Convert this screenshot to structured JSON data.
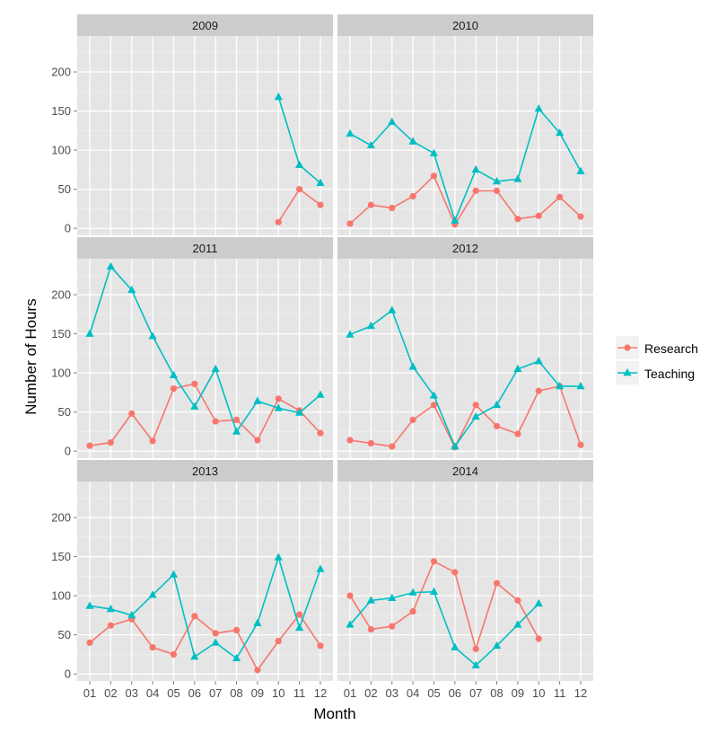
{
  "chart_data": {
    "type": "line",
    "facet_by": "year",
    "xlabel": "Month",
    "ylabel": "Number of Hours",
    "x_categories": [
      "01",
      "02",
      "03",
      "04",
      "05",
      "06",
      "07",
      "08",
      "09",
      "10",
      "11",
      "12"
    ],
    "yticks": [
      0,
      50,
      100,
      150,
      200
    ],
    "ylim": [
      -9,
      246
    ],
    "grid": true,
    "legend": {
      "placement": "right",
      "entries": [
        "Research",
        "Teaching"
      ]
    },
    "colors": {
      "Research": "#F8766D",
      "Teaching": "#00BFC4",
      "panel_bg": "#E5E5E5",
      "strip_bg": "#CCCCCC"
    },
    "markers": {
      "Research": "circle",
      "Teaching": "triangle"
    },
    "panels": [
      {
        "title": "2009",
        "series": [
          {
            "name": "Research",
            "months": [
              "10",
              "11",
              "12"
            ],
            "values": [
              8,
              50,
              30
            ]
          },
          {
            "name": "Teaching",
            "months": [
              "10",
              "11",
              "12"
            ],
            "values": [
              168,
              81,
              58
            ]
          }
        ]
      },
      {
        "title": "2010",
        "series": [
          {
            "name": "Research",
            "months": [
              "01",
              "02",
              "03",
              "04",
              "05",
              "06",
              "07",
              "08",
              "09",
              "10",
              "11",
              "12"
            ],
            "values": [
              6,
              30,
              26,
              41,
              67,
              5,
              48,
              48,
              12,
              16,
              40,
              15
            ]
          },
          {
            "name": "Teaching",
            "months": [
              "01",
              "02",
              "03",
              "04",
              "05",
              "06",
              "07",
              "08",
              "09",
              "10",
              "11",
              "12"
            ],
            "values": [
              121,
              106,
              136,
              111,
              96,
              10,
              75,
              60,
              63,
              153,
              122,
              73
            ]
          }
        ]
      },
      {
        "title": "2011",
        "series": [
          {
            "name": "Research",
            "months": [
              "01",
              "02",
              "03",
              "04",
              "05",
              "06",
              "07",
              "08",
              "09",
              "10",
              "11",
              "12"
            ],
            "values": [
              7,
              11,
              48,
              13,
              80,
              86,
              38,
              40,
              14,
              67,
              52,
              23
            ]
          },
          {
            "name": "Teaching",
            "months": [
              "01",
              "02",
              "03",
              "04",
              "05",
              "06",
              "07",
              "08",
              "09",
              "10",
              "11",
              "12"
            ],
            "values": [
              150,
              236,
              206,
              147,
              97,
              57,
              105,
              25,
              64,
              55,
              49,
              72
            ]
          }
        ]
      },
      {
        "title": "2012",
        "series": [
          {
            "name": "Research",
            "months": [
              "01",
              "02",
              "03",
              "04",
              "05",
              "06",
              "07",
              "08",
              "09",
              "10",
              "11",
              "12"
            ],
            "values": [
              14,
              10,
              6,
              40,
              59,
              5,
              59,
              32,
              22,
              77,
              83,
              8
            ]
          },
          {
            "name": "Teaching",
            "months": [
              "01",
              "02",
              "03",
              "04",
              "05",
              "06",
              "07",
              "08",
              "09",
              "10",
              "11",
              "12"
            ],
            "values": [
              149,
              160,
              180,
              108,
              71,
              6,
              44,
              59,
              105,
              115,
              83,
              83
            ]
          }
        ]
      },
      {
        "title": "2013",
        "series": [
          {
            "name": "Research",
            "months": [
              "01",
              "02",
              "03",
              "04",
              "05",
              "06",
              "07",
              "08",
              "09",
              "10",
              "11",
              "12"
            ],
            "values": [
              40,
              62,
              70,
              34,
              25,
              74,
              52,
              56,
              5,
              42,
              76,
              36
            ]
          },
          {
            "name": "Teaching",
            "months": [
              "01",
              "02",
              "03",
              "04",
              "05",
              "06",
              "07",
              "08",
              "09",
              "10",
              "11",
              "12"
            ],
            "values": [
              87,
              83,
              75,
              101,
              127,
              22,
              40,
              20,
              65,
              149,
              59,
              134
            ]
          }
        ]
      },
      {
        "title": "2014",
        "series": [
          {
            "name": "Research",
            "months": [
              "01",
              "02",
              "03",
              "04",
              "05",
              "06",
              "07",
              "08",
              "09",
              "10"
            ],
            "values": [
              100,
              57,
              61,
              80,
              144,
              130,
              32,
              116,
              94,
              45
            ]
          },
          {
            "name": "Teaching",
            "months": [
              "01",
              "02",
              "03",
              "04",
              "05",
              "06",
              "07",
              "08",
              "09",
              "10"
            ],
            "values": [
              63,
              94,
              97,
              104,
              105,
              34,
              11,
              36,
              63,
              90
            ]
          }
        ]
      }
    ]
  }
}
